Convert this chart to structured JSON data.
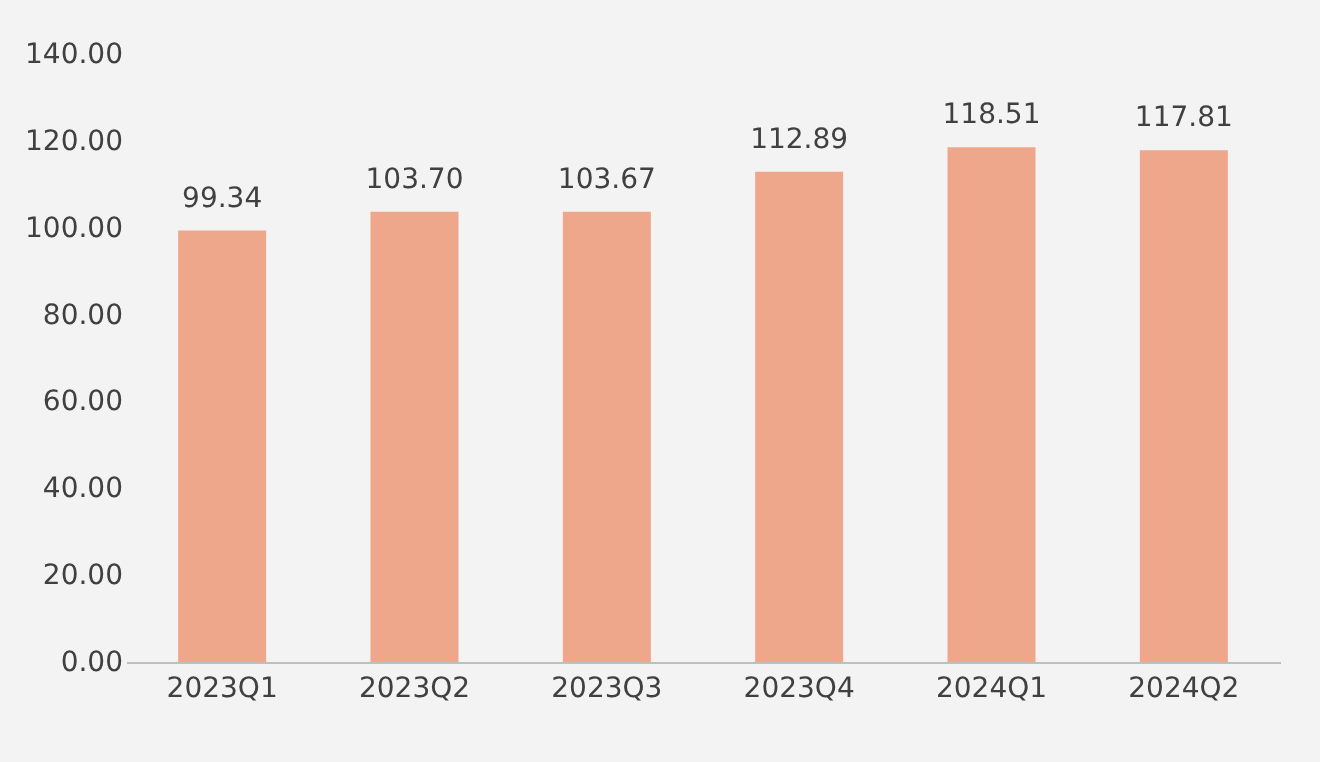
{
  "chart_data": {
    "type": "bar",
    "categories": [
      "2023Q1",
      "2023Q2",
      "2023Q3",
      "2023Q4",
      "2024Q1",
      "2024Q2"
    ],
    "values": [
      99.34,
      103.7,
      103.67,
      112.89,
      118.51,
      117.81
    ],
    "value_labels": [
      "99.34",
      "103.70",
      "103.67",
      "112.89",
      "118.51",
      "117.81"
    ],
    "color": "#eea78b",
    "ylim": [
      0,
      140
    ],
    "yticks": [
      {
        "value": 0,
        "label": "0.00"
      },
      {
        "value": 20,
        "label": "20.00"
      },
      {
        "value": 40,
        "label": "40.00"
      },
      {
        "value": 60,
        "label": "60.00"
      },
      {
        "value": 80,
        "label": "80.00"
      },
      {
        "value": 100,
        "label": "100.00"
      },
      {
        "value": 120,
        "label": "120.00"
      },
      {
        "value": 140,
        "label": "140.00"
      }
    ],
    "grid": false
  }
}
